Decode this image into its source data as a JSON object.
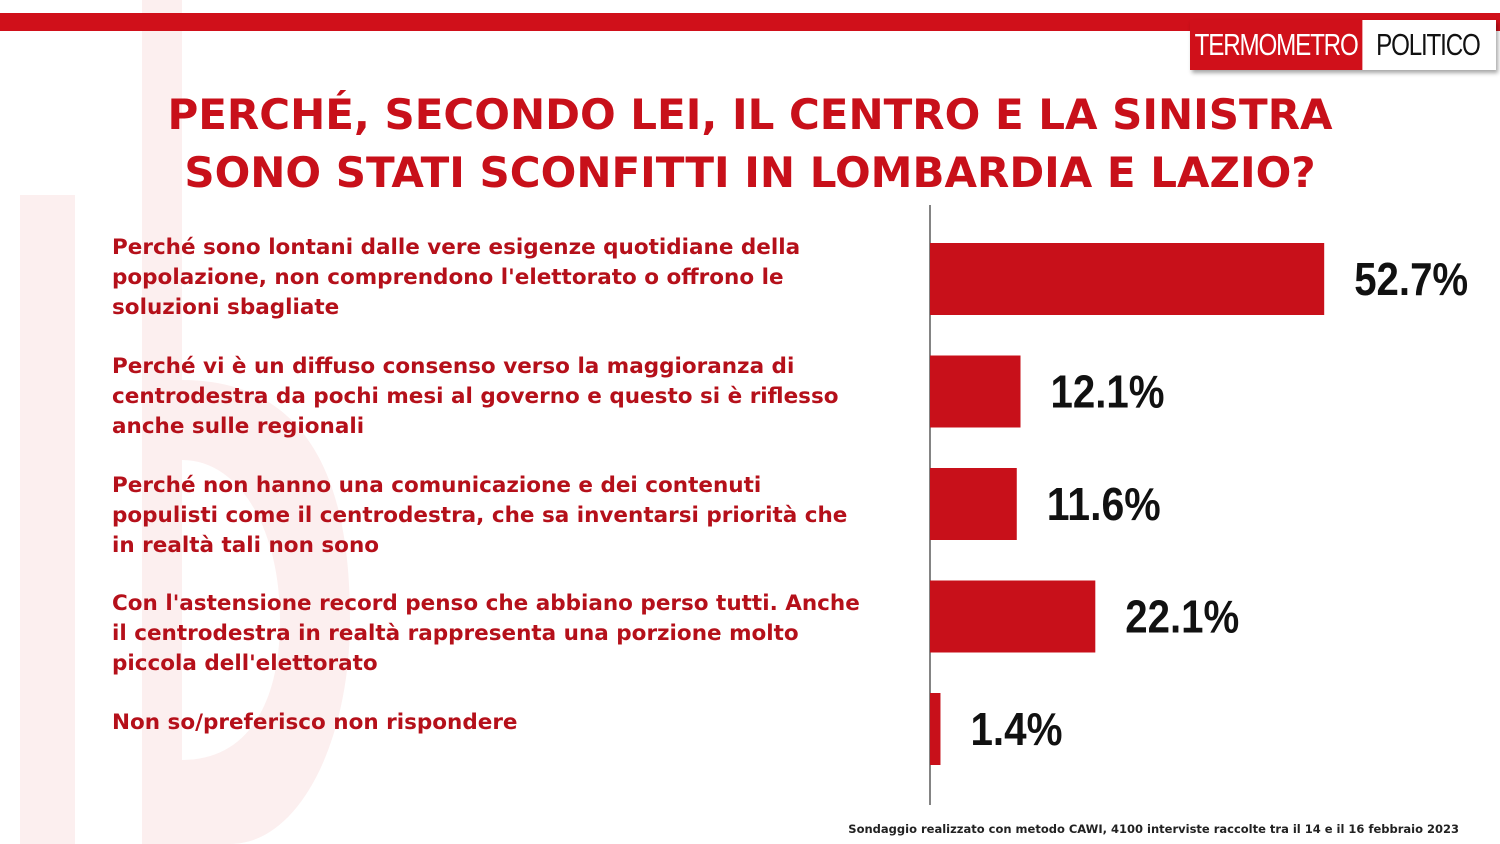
{
  "logo": {
    "part1": "TERMOMETRO",
    "part2": "POLITICO"
  },
  "title": {
    "line1": "PERCHÉ, SECONDO LEI, IL CENTRO E LA SINISTRA",
    "line2": "SONO STATI SCONFITTI IN LOMBARDIA E LAZIO?"
  },
  "chart_data": {
    "type": "bar",
    "orientation": "horizontal",
    "categories": [
      "Perché sono lontani dalle vere esigenze quotidiane della popolazione, non comprendono l'elettorato o offrono le soluzioni sbagliate",
      "Perché vi è un diffuso consenso verso la maggioranza di centrodestra da pochi mesi al governo e questo si è riflesso anche sulle regionali",
      "Perché non hanno una comunicazione e dei contenuti populisti come il centrodestra, che sa inventarsi priorità  che in realtà  tali non sono",
      "Con l'astensione record penso che abbiano perso tutti. Anche il centrodestra in realtà  rappresenta una porzione molto piccola dell'elettorato",
      "Non so/preferisco non rispondere"
    ],
    "values": [
      52.7,
      12.1,
      11.6,
      22.1,
      1.4
    ],
    "value_labels": [
      "52.7%",
      "12.1%",
      "11.6%",
      "22.1%",
      "1.4%"
    ],
    "unit": "%",
    "bar_color": "#c8101a",
    "xlim": [
      0,
      60
    ],
    "grid": false,
    "legend": "none"
  },
  "answers": [
    {
      "lines": [
        "Perché sono lontani dalle vere esigenze quotidiane della",
        "popolazione, non comprendono l'elettorato o offrono le",
        "soluzioni sbagliate"
      ]
    },
    {
      "lines": [
        "Perché vi è un diffuso consenso verso la maggioranza di",
        "centrodestra da pochi mesi al governo e questo si è riflesso",
        "anche sulle regionali"
      ]
    },
    {
      "lines": [
        "Perché non hanno una comunicazione e dei contenuti",
        "populisti come il centrodestra, che sa inventarsi priorità  che",
        "in realtà  tali non sono"
      ]
    },
    {
      "lines": [
        "Con l'astensione record penso che abbiano perso tutti. Anche",
        "il centrodestra in realtà  rappresenta una porzione molto",
        "piccola dell'elettorato"
      ]
    },
    {
      "lines": [
        "Non so/preferisco non rispondere"
      ]
    }
  ],
  "footnote": "Sondaggio realizzato con metodo CAWI, 4100 interviste raccolte tra il 14 e il 16 febbraio 2023",
  "colors": {
    "brand_red": "#d0101a",
    "title_red": "#c8101a",
    "label_red": "#b5101a",
    "watermark": "#fbeaea"
  }
}
